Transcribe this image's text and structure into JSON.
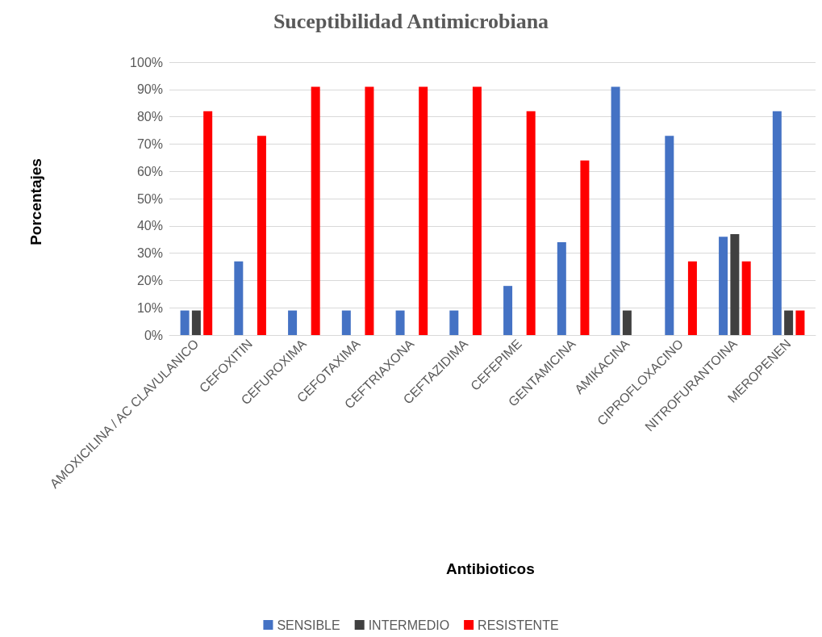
{
  "chart_data": {
    "type": "bar",
    "title": "Suceptibilidad Antimicrobiana",
    "xlabel": "Antibioticos",
    "ylabel": "Porcentajes",
    "categories": [
      "AMOXICILINA / AC CLAVULANICO",
      "CEFOXITIN",
      "CEFUROXIMA",
      "CEFOTAXIMA",
      "CEFTRIAXONA",
      "CEFTAZIDIMA",
      "CEFEPIME",
      "GENTAMICINA",
      "AMIKACINA",
      "CIPROFLOXACINO",
      "NITROFURANTOINA",
      "MEROPENEN"
    ],
    "series": [
      {
        "name": "SENSIBLE",
        "color": "#4472c4",
        "values": [
          9,
          27,
          9,
          9,
          9,
          9,
          18,
          34,
          91,
          73,
          36,
          82
        ]
      },
      {
        "name": "INTERMEDIO",
        "color": "#404040",
        "values": [
          9,
          0,
          0,
          0,
          0,
          0,
          0,
          0,
          9,
          0,
          37,
          9
        ]
      },
      {
        "name": "RESISTENTE",
        "color": "#ff0000",
        "values": [
          82,
          73,
          91,
          91,
          91,
          91,
          82,
          64,
          0,
          27,
          27,
          9
        ]
      }
    ],
    "ylim": [
      0,
      100
    ],
    "yticks": [
      {
        "value": 0,
        "label": "0%"
      },
      {
        "value": 10,
        "label": "10%"
      },
      {
        "value": 20,
        "label": "20%"
      },
      {
        "value": 30,
        "label": "30%"
      },
      {
        "value": 40,
        "label": "40%"
      },
      {
        "value": 50,
        "label": "50%"
      },
      {
        "value": 60,
        "label": "60%"
      },
      {
        "value": 70,
        "label": "70%"
      },
      {
        "value": 80,
        "label": "80%"
      },
      {
        "value": 90,
        "label": "90%"
      },
      {
        "value": 100,
        "label": "100%"
      }
    ],
    "grid": "y",
    "legend": "bottom"
  }
}
